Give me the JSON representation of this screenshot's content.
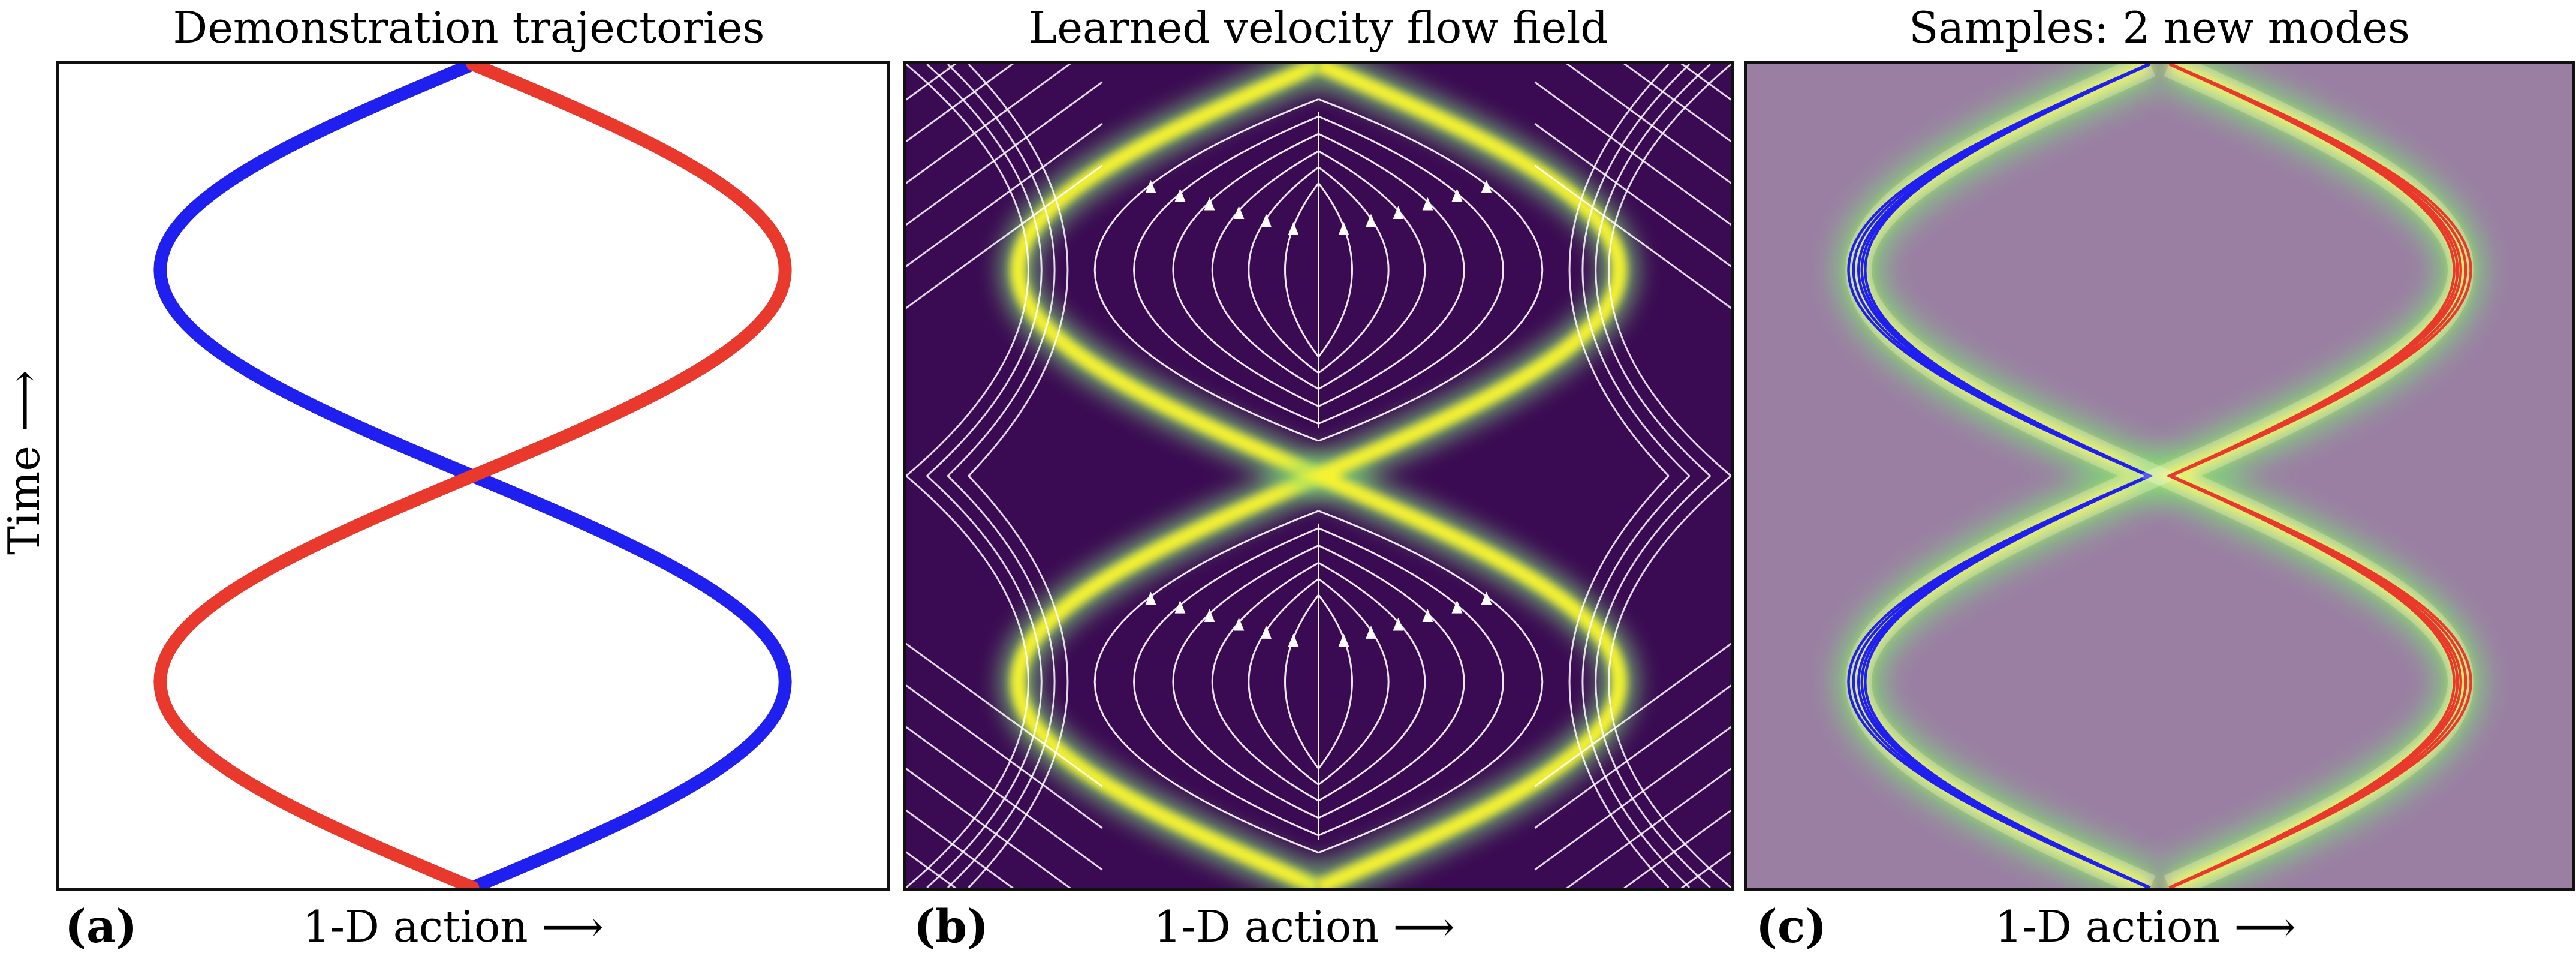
{
  "ylabel": "Time ⟶",
  "panels": [
    {
      "tag": "(a)",
      "title": "Demonstration trajectories",
      "xlabel": "1-D action ⟶"
    },
    {
      "tag": "(b)",
      "title": "Learned velocity flow field",
      "xlabel": "1-D action ⟶"
    },
    {
      "tag": "(c)",
      "title": "Samples: 2 new modes",
      "xlabel": "1-D action ⟶"
    }
  ],
  "colors": {
    "mode_blue": "#1f1ff0",
    "mode_red": "#e8392c",
    "field_background": "#3a0a52",
    "density_yellow": "#f5f232",
    "density_green": "#7fd87a",
    "sample_background": "#9a7fa3",
    "streamline": "#ffffff"
  }
}
